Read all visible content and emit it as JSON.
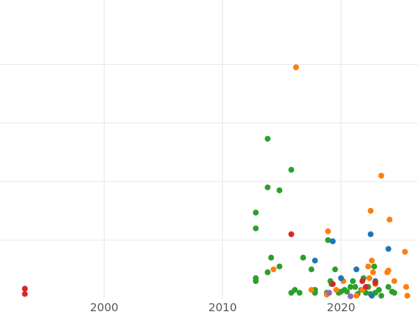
{
  "chart_data": {
    "type": "scatter",
    "title": "",
    "xlabel": "",
    "ylabel": "",
    "xlim": [
      1991.2,
      2026.5
    ],
    "ylim": [
      0,
      5.1
    ],
    "x_ticks": [
      2000,
      2010,
      2020
    ],
    "x_tick_labels": [
      "2000",
      "2010",
      "2020"
    ],
    "y_gridlines": [
      1,
      2,
      3,
      4
    ],
    "grid": true,
    "legend": "none",
    "series": [
      {
        "color": "#2ca02c",
        "points": [
          [
            2012.8,
            0.3
          ],
          [
            2012.8,
            0.35
          ],
          [
            2012.8,
            1.2
          ],
          [
            2012.8,
            1.47
          ],
          [
            2013.8,
            0.45
          ],
          [
            2013.8,
            1.9
          ],
          [
            2013.8,
            2.73
          ],
          [
            2014.1,
            0.7
          ],
          [
            2014.8,
            0.55
          ],
          [
            2014.8,
            1.85
          ],
          [
            2015.8,
            0.1
          ],
          [
            2015.8,
            2.2
          ],
          [
            2016.1,
            0.15
          ],
          [
            2016.5,
            0.1
          ],
          [
            2016.8,
            0.7
          ],
          [
            2017.5,
            0.5
          ],
          [
            2017.8,
            0.15
          ],
          [
            2017.8,
            0.1
          ],
          [
            2018.8,
            0.1
          ],
          [
            2018.9,
            1.0
          ],
          [
            2019.1,
            0.3
          ],
          [
            2019.2,
            0.25
          ],
          [
            2019.5,
            0.5
          ],
          [
            2019.8,
            0.1
          ],
          [
            2020.0,
            0.12
          ],
          [
            2020.3,
            0.15
          ],
          [
            2020.5,
            0.12
          ],
          [
            2020.8,
            0.2
          ],
          [
            2021.0,
            0.3
          ],
          [
            2021.2,
            0.2
          ],
          [
            2021.4,
            0.08
          ],
          [
            2021.7,
            0.15
          ],
          [
            2021.9,
            0.35
          ],
          [
            2022.1,
            0.1
          ],
          [
            2022.3,
            0.2
          ],
          [
            2022.5,
            0.08
          ],
          [
            2022.8,
            0.55
          ],
          [
            2022.9,
            0.1
          ],
          [
            2023.2,
            0.15
          ],
          [
            2023.4,
            0.05
          ],
          [
            2024.0,
            0.2
          ],
          [
            2024.3,
            0.12
          ],
          [
            2024.5,
            0.1
          ]
        ]
      },
      {
        "color": "#ff7f0e",
        "points": [
          [
            2016.2,
            3.95
          ],
          [
            2014.3,
            0.5
          ],
          [
            2017.5,
            0.15
          ],
          [
            2018.8,
            0.07
          ],
          [
            2018.9,
            1.15
          ],
          [
            2019.6,
            0.15
          ],
          [
            2020.2,
            0.3
          ],
          [
            2021.3,
            0.05
          ],
          [
            2021.8,
            0.15
          ],
          [
            2022.3,
            0.55
          ],
          [
            2022.4,
            0.35
          ],
          [
            2022.5,
            1.5
          ],
          [
            2022.6,
            0.65
          ],
          [
            2022.7,
            0.45
          ],
          [
            2022.9,
            0.25
          ],
          [
            2023.4,
            2.1
          ],
          [
            2023.9,
            0.45
          ],
          [
            2024.0,
            0.48
          ],
          [
            2024.1,
            1.35
          ],
          [
            2024.5,
            0.3
          ],
          [
            2025.4,
            0.8
          ],
          [
            2025.5,
            0.2
          ],
          [
            2025.6,
            0.05
          ]
        ]
      },
      {
        "color": "#1f77b4",
        "points": [
          [
            2017.8,
            0.65
          ],
          [
            2019.3,
            0.98
          ],
          [
            2020.0,
            0.35
          ],
          [
            2021.3,
            0.5
          ],
          [
            2022.5,
            1.1
          ],
          [
            2022.6,
            0.05
          ],
          [
            2022.9,
            0.3
          ],
          [
            2024.0,
            0.85
          ]
        ]
      },
      {
        "color": "#d62728",
        "points": [
          [
            1993.3,
            0.08
          ],
          [
            1993.3,
            0.17
          ],
          [
            2015.8,
            1.1
          ],
          [
            2019.3,
            0.25
          ],
          [
            2021.8,
            0.3
          ],
          [
            2022.1,
            0.2
          ],
          [
            2022.9,
            0.27
          ]
        ]
      },
      {
        "color": "#9467bd",
        "points": [
          [
            2019.0,
            0.1
          ],
          [
            2020.8,
            0.04
          ]
        ]
      }
    ]
  }
}
